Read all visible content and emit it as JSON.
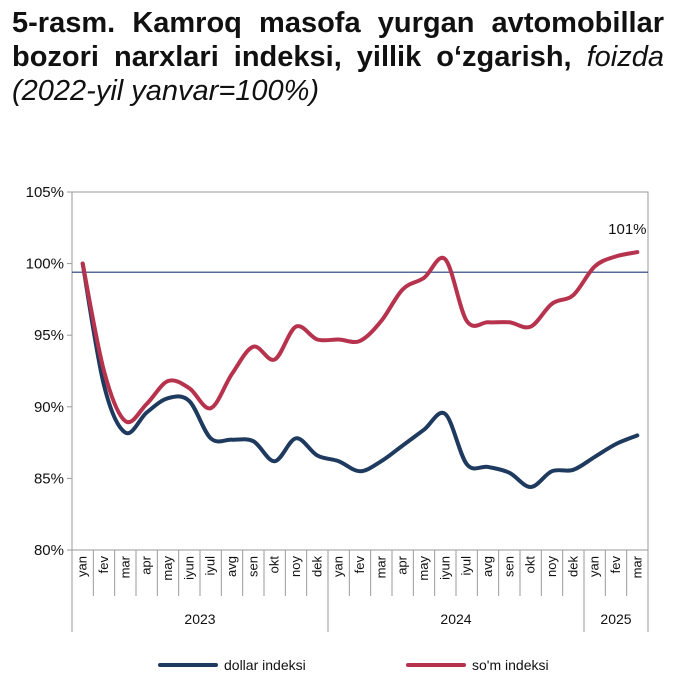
{
  "figure": {
    "title_bold": "5-rasm. Kamroq masofa yurgan avtomobillar bozori narxlari indeksi, yillik o‘zgarish,",
    "title_italic": "foizda (2022-yil yanvar=100%)"
  },
  "chart_data": {
    "type": "line",
    "title": "5-rasm. Kamroq masofa yurgan avtomobillar bozori narxlari indeksi, yillik o‘zgarish, foizda (2022-yil yanvar=100%)",
    "xlabel": "",
    "ylabel": "",
    "ylim": [
      80,
      105
    ],
    "yticks": [
      "80%",
      "85%",
      "90%",
      "95%",
      "100%",
      "105%"
    ],
    "x": [
      "yan",
      "fev",
      "mar",
      "apr",
      "may",
      "iyun",
      "iyul",
      "avg",
      "sen",
      "okt",
      "noy",
      "dek",
      "yan",
      "fev",
      "mar",
      "apr",
      "may",
      "iyun",
      "iyul",
      "avg",
      "sen",
      "okt",
      "noy",
      "dek",
      "yan",
      "fev",
      "mar"
    ],
    "years": [
      {
        "label": "2023",
        "start": 0,
        "end": 11
      },
      {
        "label": "2024",
        "start": 12,
        "end": 23
      },
      {
        "label": "2025",
        "start": 24,
        "end": 26
      }
    ],
    "reference_line": 99.4,
    "series": [
      {
        "name": "dollar indeksi",
        "color": "#1f3a5f",
        "values": [
          100,
          91.5,
          88.2,
          89.6,
          90.6,
          90.4,
          87.8,
          87.7,
          87.6,
          86.2,
          87.8,
          86.6,
          86.2,
          85.5,
          86.2,
          87.3,
          88.4,
          89.5,
          86.0,
          85.8,
          85.4,
          84.4,
          85.5,
          85.6,
          86.5,
          87.4,
          88.0
        ]
      },
      {
        "name": "so'm indeksi",
        "color": "#b7334d",
        "values": [
          100,
          92.5,
          89.0,
          90.2,
          91.8,
          91.3,
          89.9,
          92.3,
          94.2,
          93.3,
          95.6,
          94.7,
          94.7,
          94.6,
          96.0,
          98.2,
          99.0,
          100.3,
          96.0,
          95.9,
          95.9,
          95.6,
          97.2,
          97.8,
          99.8,
          100.5,
          100.8
        ]
      }
    ],
    "annotations": [
      {
        "text": "101%",
        "series": 1,
        "index": 26
      }
    ],
    "legend_position": "bottom",
    "grid": false
  }
}
